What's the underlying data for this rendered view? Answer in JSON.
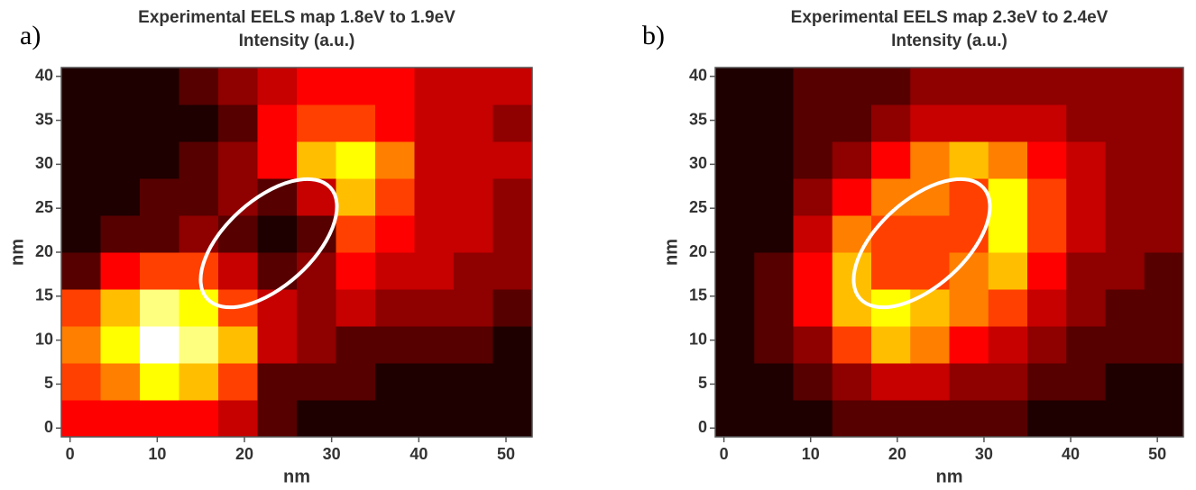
{
  "chart_data": [
    {
      "type": "heatmap",
      "panel_label": "a)",
      "title": "Experimental EELS map 1.8eV to 1.9eV",
      "subtitle": "Intensity (a.u.)",
      "xlabel": "nm",
      "ylabel": "nm",
      "xlim": [
        -1,
        53
      ],
      "ylim": [
        -1,
        41
      ],
      "xticks": [
        0,
        10,
        20,
        30,
        40,
        50
      ],
      "yticks": [
        0,
        5,
        10,
        15,
        20,
        25,
        30,
        35,
        40
      ],
      "xbins": [
        -1,
        3.5,
        8,
        12.5,
        17,
        21.5,
        26,
        30.5,
        35,
        39.5,
        44,
        48.5,
        53
      ],
      "ybins": [
        -1,
        3.2,
        7.4,
        11.6,
        15.8,
        20,
        24.2,
        28.4,
        32.6,
        36.8,
        41
      ],
      "colormap": "hot",
      "zlim": [
        0,
        10
      ],
      "z": [
        [
          4,
          4,
          4,
          4,
          3,
          1,
          0,
          0,
          0,
          0,
          0,
          0
        ],
        [
          5,
          6,
          8,
          7,
          5,
          1,
          1,
          1,
          0,
          0,
          0,
          0
        ],
        [
          6,
          8,
          10,
          9,
          7,
          3,
          2,
          1,
          1,
          1,
          1,
          0
        ],
        [
          5,
          7,
          9,
          8,
          5,
          3,
          2,
          3,
          2,
          2,
          2,
          1
        ],
        [
          1,
          4,
          5,
          5,
          3,
          1,
          2,
          4,
          3,
          3,
          2,
          2
        ],
        [
          0,
          1,
          1,
          2,
          1,
          0,
          1,
          5,
          4,
          3,
          3,
          2
        ],
        [
          0,
          0,
          1,
          1,
          2,
          1,
          3,
          7,
          5,
          3,
          3,
          2
        ],
        [
          0,
          0,
          0,
          1,
          2,
          4,
          7,
          8,
          6,
          3,
          3,
          3
        ],
        [
          0,
          0,
          0,
          0,
          1,
          4,
          5,
          5,
          4,
          3,
          3,
          2
        ],
        [
          0,
          0,
          0,
          1,
          2,
          3,
          4,
          4,
          4,
          3,
          3,
          3
        ]
      ]
    },
    {
      "type": "heatmap",
      "panel_label": "b)",
      "title": "Experimental EELS map 2.3eV to 2.4eV",
      "subtitle": "Intensity (a.u.)",
      "xlabel": "nm",
      "ylabel": "nm",
      "xlim": [
        -1,
        53
      ],
      "ylim": [
        -1,
        41
      ],
      "xticks": [
        0,
        10,
        20,
        30,
        40,
        50
      ],
      "yticks": [
        0,
        5,
        10,
        15,
        20,
        25,
        30,
        35,
        40
      ],
      "xbins": [
        -1,
        3.5,
        8,
        12.5,
        17,
        21.5,
        26,
        30.5,
        35,
        39.5,
        44,
        48.5,
        53
      ],
      "ybins": [
        -1,
        3.2,
        7.4,
        11.6,
        15.8,
        20,
        24.2,
        28.4,
        32.6,
        36.8,
        41
      ],
      "colormap": "hot",
      "zlim": [
        0,
        10
      ],
      "z": [
        [
          0,
          0,
          0,
          1,
          1,
          1,
          1,
          1,
          0,
          0,
          0,
          0
        ],
        [
          0,
          0,
          1,
          2,
          3,
          3,
          2,
          2,
          1,
          1,
          0,
          0
        ],
        [
          0,
          1,
          2,
          5,
          7,
          6,
          4,
          3,
          2,
          1,
          1,
          1
        ],
        [
          0,
          1,
          4,
          7,
          8,
          7,
          6,
          5,
          3,
          2,
          1,
          1
        ],
        [
          0,
          1,
          4,
          7,
          5,
          5,
          6,
          7,
          4,
          2,
          2,
          1
        ],
        [
          0,
          0,
          3,
          6,
          5,
          5,
          5,
          8,
          5,
          3,
          2,
          2
        ],
        [
          0,
          0,
          2,
          4,
          6,
          6,
          5,
          8,
          5,
          3,
          2,
          2
        ],
        [
          0,
          0,
          1,
          2,
          4,
          6,
          7,
          6,
          4,
          3,
          2,
          2
        ],
        [
          0,
          0,
          1,
          1,
          2,
          3,
          3,
          3,
          3,
          2,
          2,
          2
        ],
        [
          0,
          0,
          1,
          1,
          1,
          2,
          2,
          2,
          2,
          2,
          2,
          2
        ]
      ]
    }
  ]
}
